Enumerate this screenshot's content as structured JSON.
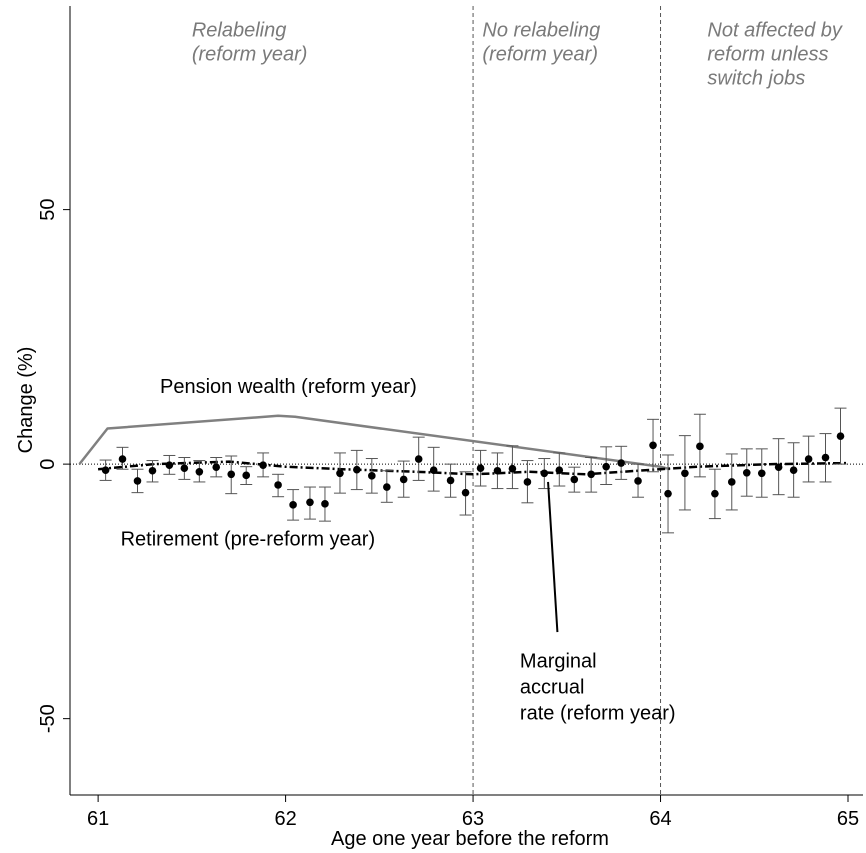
{
  "chart_data": {
    "type": "scatter",
    "xlabel": "Age one year before the reform",
    "ylabel": "Change (%)",
    "xlim": [
      60.85,
      65.08
    ],
    "ylim": [
      -65,
      90
    ],
    "x_ticks": [
      {
        "value": 61,
        "label": "61"
      },
      {
        "value": 62,
        "label": "62"
      },
      {
        "value": 63,
        "label": "63"
      },
      {
        "value": 64,
        "label": "64"
      },
      {
        "value": 65,
        "label": "65"
      }
    ],
    "y_ticks": [
      {
        "value": 50,
        "label": "50"
      },
      {
        "value": 0,
        "label": "0"
      },
      {
        "value": -50,
        "label": "-50"
      }
    ],
    "reference_lines": {
      "horizontal_y": 0,
      "vertical_x": [
        63,
        64
      ]
    },
    "region_labels": [
      {
        "lines": [
          "Relabeling",
          "(reform year)"
        ],
        "x": 61.5,
        "y": 84
      },
      {
        "lines": [
          "No relabeling",
          "(reform year)"
        ],
        "x": 63.05,
        "y": 84
      },
      {
        "lines": [
          "Not affected by",
          "reform unless",
          "switch jobs"
        ],
        "x": 64.25,
        "y": 84
      }
    ],
    "annotations": [
      {
        "lines": [
          "Pension wealth (reform year)"
        ],
        "x": 61.33,
        "y": 14
      },
      {
        "lines": [
          "Retirement (pre-reform year)"
        ],
        "x": 61.12,
        "y": -16
      },
      {
        "lines": [
          "Marginal",
          "accrual",
          "rate (reform year)"
        ],
        "x": 63.25,
        "y": -40
      }
    ],
    "pointer": {
      "from": [
        63.45,
        -33
      ],
      "to": [
        63.4,
        -3.5
      ]
    },
    "series": [
      {
        "name": "Pension wealth (reform year)",
        "style": "line",
        "color": "#808080",
        "x": [
          60.9,
          61.05,
          61.96,
          62.05,
          64.0,
          64.05
        ],
        "y": [
          0,
          7,
          9.5,
          9.3,
          -0.5,
          -1
        ]
      },
      {
        "name": "Marginal accrual rate (reform year)",
        "style": "dashdot",
        "color": "#000000",
        "x": [
          61.0,
          61.3,
          61.7,
          62.0,
          62.3,
          62.7,
          63.0,
          63.3,
          63.6,
          64.0,
          64.2,
          64.6,
          65.0
        ],
        "y": [
          -1,
          0,
          0.5,
          -0.5,
          -1,
          -1.5,
          -2,
          -1.5,
          -2,
          -1,
          -0.5,
          0,
          0.2
        ]
      },
      {
        "name": "Retirement (pre-reform year)",
        "style": "points_with_errorbars",
        "color": "#000000",
        "points": [
          {
            "x": 61.04,
            "y": -1.2,
            "lo": -3.2,
            "hi": 0.8
          },
          {
            "x": 61.13,
            "y": 1.0,
            "lo": -1.0,
            "hi": 3.3
          },
          {
            "x": 61.21,
            "y": -3.3,
            "lo": -5.6,
            "hi": -1.0
          },
          {
            "x": 61.29,
            "y": -1.3,
            "lo": -3.5,
            "hi": 0.7
          },
          {
            "x": 61.38,
            "y": -0.2,
            "lo": -2.0,
            "hi": 1.7
          },
          {
            "x": 61.46,
            "y": -0.8,
            "lo": -3.0,
            "hi": 1.3
          },
          {
            "x": 61.54,
            "y": -1.5,
            "lo": -3.5,
            "hi": 0.7
          },
          {
            "x": 61.63,
            "y": -0.6,
            "lo": -2.5,
            "hi": 1.3
          },
          {
            "x": 61.71,
            "y": -2.0,
            "lo": -5.8,
            "hi": 1.6
          },
          {
            "x": 61.79,
            "y": -2.2,
            "lo": -4.0,
            "hi": -0.5
          },
          {
            "x": 61.88,
            "y": -0.2,
            "lo": -2.5,
            "hi": 2.2
          },
          {
            "x": 61.96,
            "y": -4.1,
            "lo": -6.4,
            "hi": -2.0
          },
          {
            "x": 62.04,
            "y": -8.0,
            "lo": -11.0,
            "hi": -5.0
          },
          {
            "x": 62.13,
            "y": -7.5,
            "lo": -10.8,
            "hi": -4.5
          },
          {
            "x": 62.21,
            "y": -7.8,
            "lo": -11.2,
            "hi": -4.5
          },
          {
            "x": 62.29,
            "y": -1.8,
            "lo": -5.7,
            "hi": 2.2
          },
          {
            "x": 62.38,
            "y": -1.1,
            "lo": -5.0,
            "hi": 2.7
          },
          {
            "x": 62.46,
            "y": -2.3,
            "lo": -5.7,
            "hi": 1.1
          },
          {
            "x": 62.54,
            "y": -4.5,
            "lo": -7.5,
            "hi": -1.3
          },
          {
            "x": 62.63,
            "y": -3.0,
            "lo": -6.5,
            "hi": 0.6
          },
          {
            "x": 62.71,
            "y": 1.0,
            "lo": -3.2,
            "hi": 5.3
          },
          {
            "x": 62.79,
            "y": -1.2,
            "lo": -5.3,
            "hi": 3.3
          },
          {
            "x": 62.88,
            "y": -3.2,
            "lo": -6.5,
            "hi": 0.0
          },
          {
            "x": 62.96,
            "y": -5.6,
            "lo": -10.0,
            "hi": -1.5
          },
          {
            "x": 63.04,
            "y": -0.8,
            "lo": -4.3,
            "hi": 2.7
          },
          {
            "x": 63.13,
            "y": -1.3,
            "lo": -4.8,
            "hi": 2.2
          },
          {
            "x": 63.21,
            "y": -0.9,
            "lo": -4.8,
            "hi": 3.6
          },
          {
            "x": 63.29,
            "y": -3.5,
            "lo": -7.6,
            "hi": 0.7
          },
          {
            "x": 63.38,
            "y": -1.8,
            "lo": -4.8,
            "hi": 1.1
          },
          {
            "x": 63.46,
            "y": -1.2,
            "lo": -4.3,
            "hi": 2.2
          },
          {
            "x": 63.54,
            "y": -3.0,
            "lo": -5.5,
            "hi": -0.6
          },
          {
            "x": 63.63,
            "y": -2.0,
            "lo": -5.5,
            "hi": 1.3
          },
          {
            "x": 63.71,
            "y": -0.5,
            "lo": -4.0,
            "hi": 3.4
          },
          {
            "x": 63.79,
            "y": 0.2,
            "lo": -3.0,
            "hi": 3.5
          },
          {
            "x": 63.88,
            "y": -3.3,
            "lo": -6.5,
            "hi": 0.0
          },
          {
            "x": 63.96,
            "y": 3.7,
            "lo": -1.5,
            "hi": 8.8
          },
          {
            "x": 64.04,
            "y": -5.8,
            "lo": -13.5,
            "hi": 1.8
          },
          {
            "x": 64.13,
            "y": -1.8,
            "lo": -9.0,
            "hi": 5.6
          },
          {
            "x": 64.21,
            "y": 3.5,
            "lo": -2.5,
            "hi": 9.8
          },
          {
            "x": 64.29,
            "y": -5.8,
            "lo": -10.7,
            "hi": -1.0
          },
          {
            "x": 64.38,
            "y": -3.5,
            "lo": -9.0,
            "hi": 2.0
          },
          {
            "x": 64.46,
            "y": -1.7,
            "lo": -6.3,
            "hi": 3.0
          },
          {
            "x": 64.54,
            "y": -1.8,
            "lo": -6.5,
            "hi": 3.0
          },
          {
            "x": 64.63,
            "y": -0.6,
            "lo": -6.0,
            "hi": 5.0
          },
          {
            "x": 64.71,
            "y": -1.2,
            "lo": -6.5,
            "hi": 4.2
          },
          {
            "x": 64.79,
            "y": 1.0,
            "lo": -3.5,
            "hi": 5.5
          },
          {
            "x": 64.88,
            "y": 1.3,
            "lo": -3.5,
            "hi": 6.0
          },
          {
            "x": 64.96,
            "y": 5.5,
            "lo": 0.0,
            "hi": 11.0
          }
        ]
      }
    ]
  }
}
